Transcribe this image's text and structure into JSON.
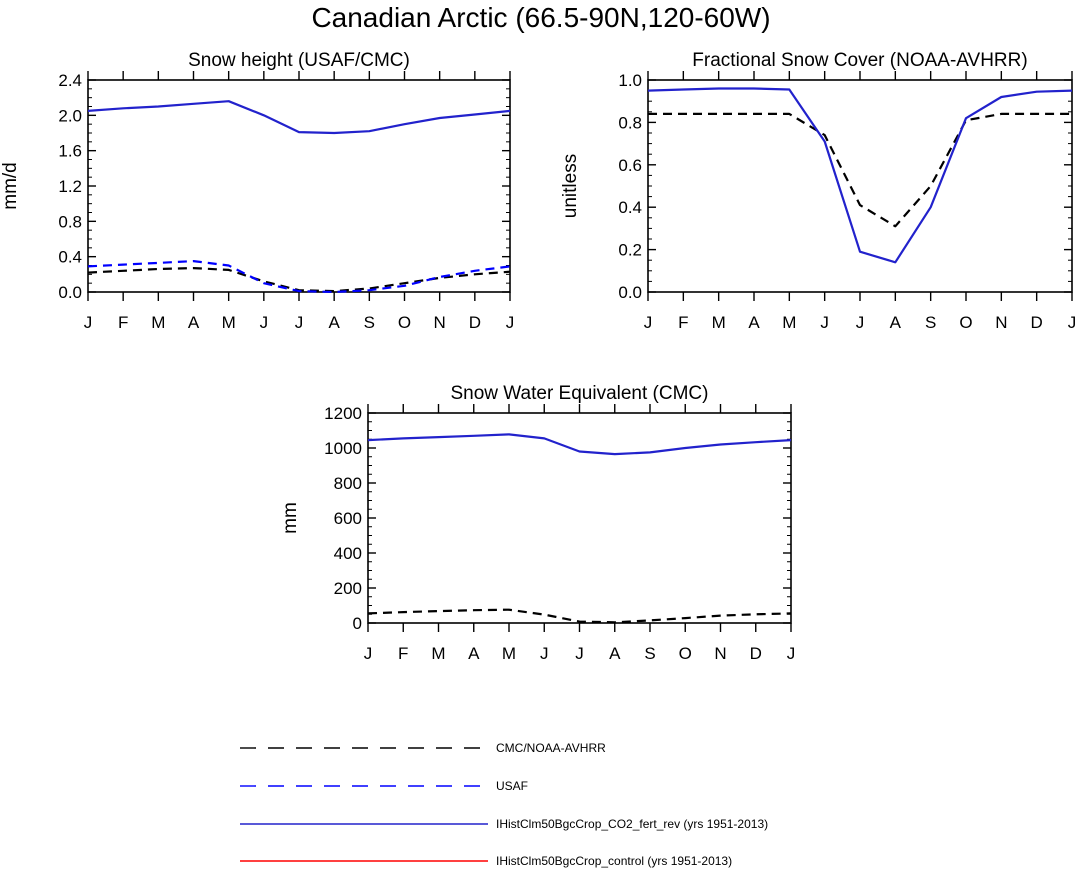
{
  "figure_title": "Canadian Arctic (66.5-90N,120-60W)",
  "colors": {
    "obs": "#000000",
    "usaf": "#0000ff",
    "co2_fert": "#2222cc",
    "control": "#ff0000"
  },
  "legend": [
    {
      "label": "CMC/NOAA-AVHRR",
      "color": "#000000",
      "dash": "dashed"
    },
    {
      "label": "USAF",
      "color": "#0000ff",
      "dash": "dashed"
    },
    {
      "label": "IHistClm50BgcCrop_CO2_fert_rev (yrs 1951-2013)",
      "color": "#2222cc",
      "dash": "solid"
    },
    {
      "label": "IHistClm50BgcCrop_control (yrs 1951-2013)",
      "color": "#ff0000",
      "dash": "solid"
    }
  ],
  "chart_data": [
    {
      "type": "line",
      "title": "Snow height (USAF/CMC)",
      "ylabel": "mm/d",
      "xlabel": "",
      "categories": [
        "J",
        "F",
        "M",
        "A",
        "M",
        "J",
        "J",
        "A",
        "S",
        "O",
        "N",
        "D",
        "J"
      ],
      "ylim": [
        0,
        2.4
      ],
      "yticks": [
        "0.0",
        "0.4",
        "0.8",
        "1.2",
        "1.6",
        "2.0",
        "2.4"
      ],
      "series": [
        {
          "name": "CMC/NOAA-AVHRR",
          "dash": "dashed",
          "color": "#000000",
          "values": [
            0.22,
            0.24,
            0.26,
            0.27,
            0.25,
            0.12,
            0.02,
            0.01,
            0.04,
            0.1,
            0.16,
            0.2,
            0.23
          ]
        },
        {
          "name": "USAF",
          "dash": "dashed",
          "color": "#0000ff",
          "values": [
            0.29,
            0.31,
            0.33,
            0.35,
            0.3,
            0.1,
            0.01,
            0.0,
            0.02,
            0.07,
            0.17,
            0.24,
            0.29
          ]
        },
        {
          "name": "IHistClm50BgcCrop_CO2_fert_rev (yrs 1951-2013)",
          "dash": "solid",
          "color": "#2222cc",
          "values": [
            2.05,
            2.08,
            2.1,
            2.13,
            2.16,
            2.0,
            1.81,
            1.8,
            1.82,
            1.9,
            1.97,
            2.01,
            2.05
          ]
        }
      ]
    },
    {
      "type": "line",
      "title": "Fractional Snow Cover (NOAA-AVHRR)",
      "ylabel": "unitless",
      "xlabel": "",
      "categories": [
        "J",
        "F",
        "M",
        "A",
        "M",
        "J",
        "J",
        "A",
        "S",
        "O",
        "N",
        "D",
        "J"
      ],
      "ylim": [
        0,
        1.0
      ],
      "yticks": [
        "0.0",
        "0.2",
        "0.4",
        "0.6",
        "0.8",
        "1.0"
      ],
      "series": [
        {
          "name": "CMC/NOAA-AVHRR",
          "dash": "dashed",
          "color": "#000000",
          "values": [
            0.84,
            0.84,
            0.84,
            0.84,
            0.84,
            0.74,
            0.41,
            0.31,
            0.5,
            0.81,
            0.84,
            0.84,
            0.84
          ]
        },
        {
          "name": "IHistClm50BgcCrop_CO2_fert_rev (yrs 1951-2013)",
          "dash": "solid",
          "color": "#2222cc",
          "values": [
            0.95,
            0.955,
            0.96,
            0.96,
            0.955,
            0.71,
            0.19,
            0.14,
            0.4,
            0.82,
            0.92,
            0.945,
            0.95
          ]
        }
      ]
    },
    {
      "type": "line",
      "title": "Snow Water Equivalent (CMC)",
      "ylabel": "mm",
      "xlabel": "",
      "categories": [
        "J",
        "F",
        "M",
        "A",
        "M",
        "J",
        "J",
        "A",
        "S",
        "O",
        "N",
        "D",
        "J"
      ],
      "ylim": [
        0,
        1200
      ],
      "yticks": [
        "0",
        "200",
        "400",
        "600",
        "800",
        "1000",
        "1200"
      ],
      "series": [
        {
          "name": "CMC/NOAA-AVHRR",
          "dash": "dashed",
          "color": "#000000",
          "values": [
            55,
            62,
            68,
            73,
            76,
            48,
            8,
            4,
            15,
            28,
            42,
            50,
            55
          ]
        },
        {
          "name": "IHistClm50BgcCrop_CO2_fert_rev (yrs 1951-2013)",
          "dash": "solid",
          "color": "#2222cc",
          "values": [
            1045,
            1055,
            1062,
            1070,
            1078,
            1055,
            980,
            965,
            975,
            1000,
            1020,
            1033,
            1045
          ]
        }
      ]
    }
  ]
}
